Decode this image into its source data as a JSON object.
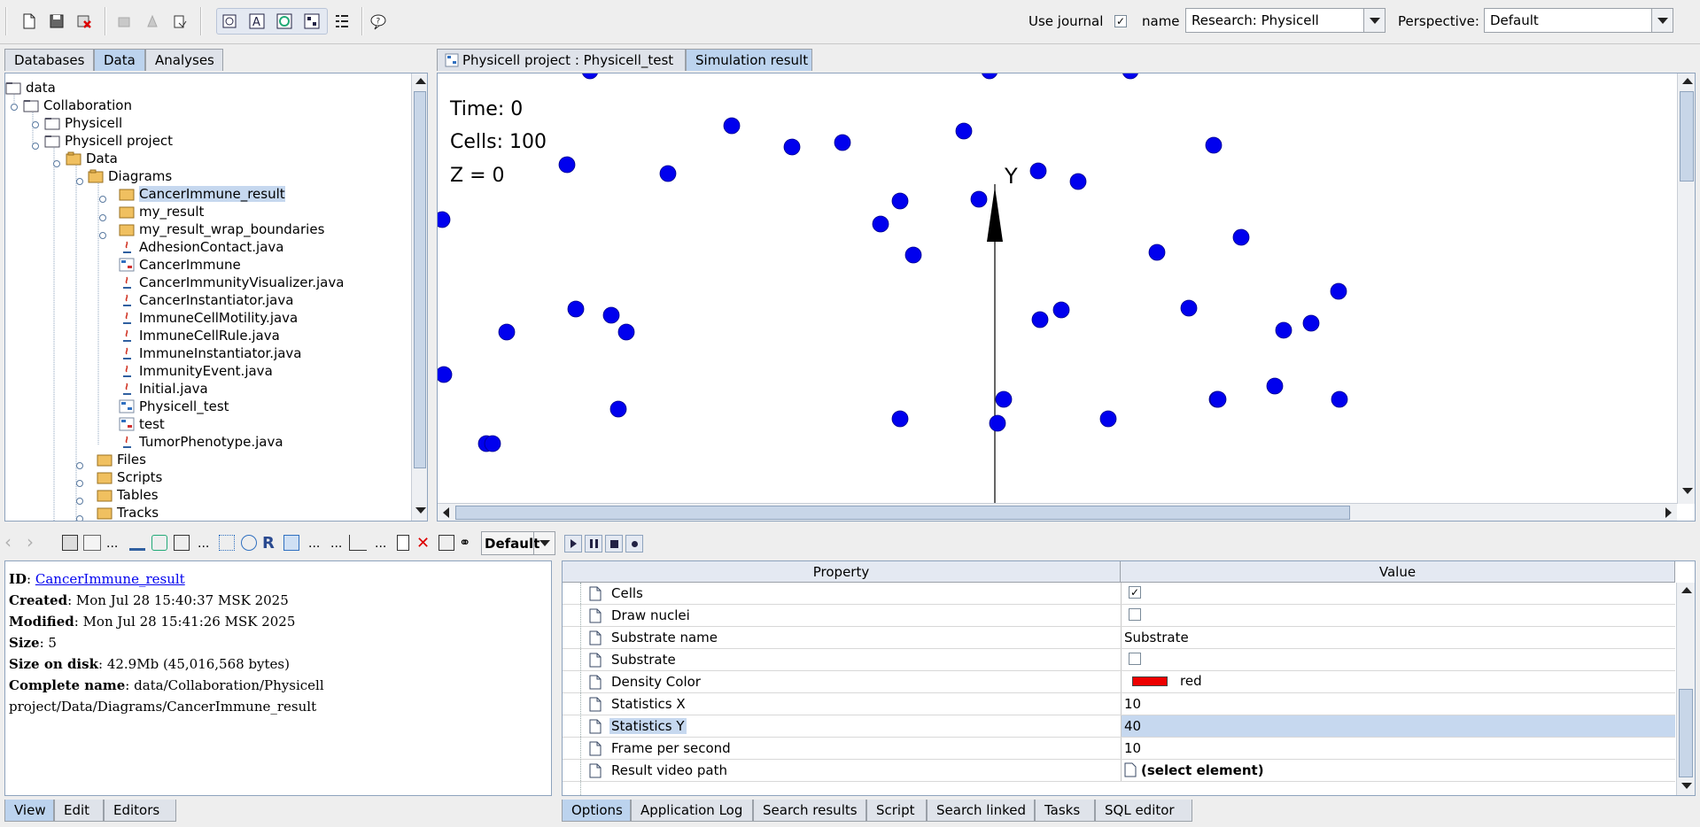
{
  "toolbar": {
    "use_journal_label": "Use journal",
    "use_journal_checked": true,
    "name_label": "name",
    "name_value": "Research: Physicell",
    "perspective_label": "Perspective:",
    "perspective_value": "Default"
  },
  "left_tabs": [
    "Databases",
    "Data",
    "Analyses"
  ],
  "left_active_tab": "Data",
  "tree": {
    "root": "data",
    "collaboration": "Collaboration",
    "physicell": "Physicell",
    "physicell_project": "Physicell project",
    "data": "Data",
    "diagrams": "Diagrams",
    "items": [
      "CancerImmune_result",
      "my_result",
      "my_result_wrap_boundaries",
      "AdhesionContact.java",
      "CancerImmune",
      "CancerImmunityVisualizer.java",
      "CancerInstantiator.java",
      "ImmuneCellMotility.java",
      "ImmuneCellRule.java",
      "ImmuneInstantiator.java",
      "ImmunityEvent.java",
      "Initial.java",
      "Physicell_test",
      "test",
      "TumorPhenotype.java"
    ],
    "files": "Files",
    "scripts": "Scripts",
    "tables": "Tables",
    "tracks": "Tracks"
  },
  "doc_tabs": [
    "Physicell project : Physicell_test",
    "Simulation result"
  ],
  "doc_active_tab": "Simulation result",
  "simulation": {
    "time": "Time: 0",
    "cells": "Cells: 100",
    "z": "Z = 0",
    "axis_label": "Y",
    "cell_color": "#0000ee"
  },
  "mid_toolbar": {
    "view_mode": "Default"
  },
  "info": {
    "id_label": "ID",
    "id_value": "CancerImmune_result",
    "created_label": "Created",
    "created_value": "Mon Jul 28 15:40:37 MSK 2025",
    "modified_label": "Modified",
    "modified_value": "Mon Jul 28 15:41:26 MSK 2025",
    "size_label": "Size",
    "size_value": "5",
    "disk_label": "Size on disk",
    "disk_value": "42.9Mb (45,016,568 bytes)",
    "complete_label": "Complete name",
    "complete_value1": "data/Collaboration/Physicell",
    "complete_value2": "project/Data/Diagrams/CancerImmune_result"
  },
  "bottom_left_tabs": [
    "View",
    "Edit",
    "Editors"
  ],
  "bottom_left_active": "View",
  "properties": {
    "header_property": "Property",
    "header_value": "Value",
    "rows": [
      {
        "name": "Cells",
        "value": "",
        "checkbox": true,
        "checked": true
      },
      {
        "name": "Draw nuclei",
        "value": "",
        "checkbox": true,
        "checked": false
      },
      {
        "name": "Substrate name",
        "value": "Substrate"
      },
      {
        "name": "Substrate",
        "value": "",
        "checkbox": true,
        "checked": false
      },
      {
        "name": "Density Color",
        "value": "red",
        "swatch": "#ee0000"
      },
      {
        "name": "Statistics X",
        "value": "10"
      },
      {
        "name": "Statistics Y",
        "value": "40",
        "selected": true
      },
      {
        "name": "Frame per second",
        "value": "10"
      },
      {
        "name": "Result video path",
        "value": "(select element)",
        "bold": true
      }
    ]
  },
  "bottom_right_tabs": [
    "Options",
    "Application Log",
    "Search results",
    "Script",
    "Search linked",
    "Tasks",
    "SQL editor"
  ],
  "bottom_right_active": "Options"
}
